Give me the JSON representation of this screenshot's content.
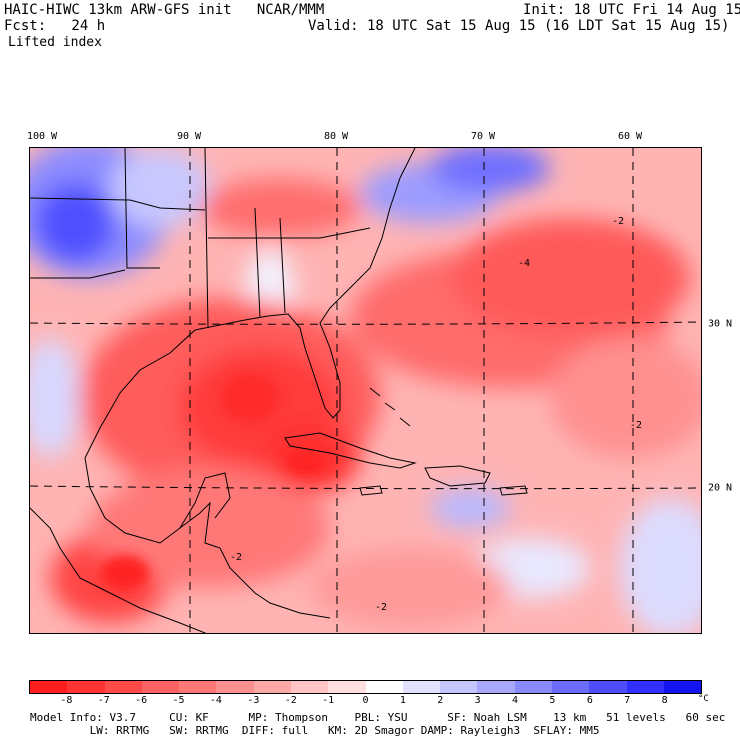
{
  "header": {
    "model_line": "HAIC-HIWC 13km ARW-GFS init   NCAR/MMM",
    "init_line": "Init: 18 UTC Fri 14 Aug 15",
    "fcst_line": "Fcst:   24 h",
    "valid_line": "Valid: 18 UTC Sat 15 Aug 15 (16 LDT Sat 15 Aug 15)",
    "field_name": "Lifted index"
  },
  "map": {
    "lon_labels": [
      "100 W",
      "90 W",
      "80 W",
      "70 W",
      "60 W"
    ],
    "lat_labels": [
      "30 N",
      "20 N"
    ],
    "contour_labels": [
      "-2",
      "-4",
      "-2",
      "-2",
      "-2"
    ]
  },
  "colorbar": {
    "tick_labels": [
      "-8",
      "-7",
      "-6",
      "-5",
      "-4",
      "-3",
      "-2",
      "-1",
      "0",
      "1",
      "2",
      "3",
      "4",
      "5",
      "6",
      "7",
      "8"
    ],
    "unit": "°C",
    "colors": [
      "#ff1e1e",
      "#ff3434",
      "#ff4a4a",
      "#ff6262",
      "#ff7878",
      "#ff9090",
      "#ffa8a8",
      "#ffc4c4",
      "#ffe0e0",
      "#ffffff",
      "#e2e2ff",
      "#c6c6ff",
      "#a8a8ff",
      "#8a8aff",
      "#6c6cff",
      "#4e4eff",
      "#3030ff",
      "#1414f0"
    ]
  },
  "footer": {
    "line1": "Model Info: V3.7     CU: KF      MP: Thompson    PBL: YSU      SF: Noah LSM    13 km   51 levels   60 sec",
    "line2": "         LW: RRTMG   SW: RRTMG  DIFF: full   KM: 2D Smagor DAMP: Rayleigh3  SFLAY: MM5"
  }
}
